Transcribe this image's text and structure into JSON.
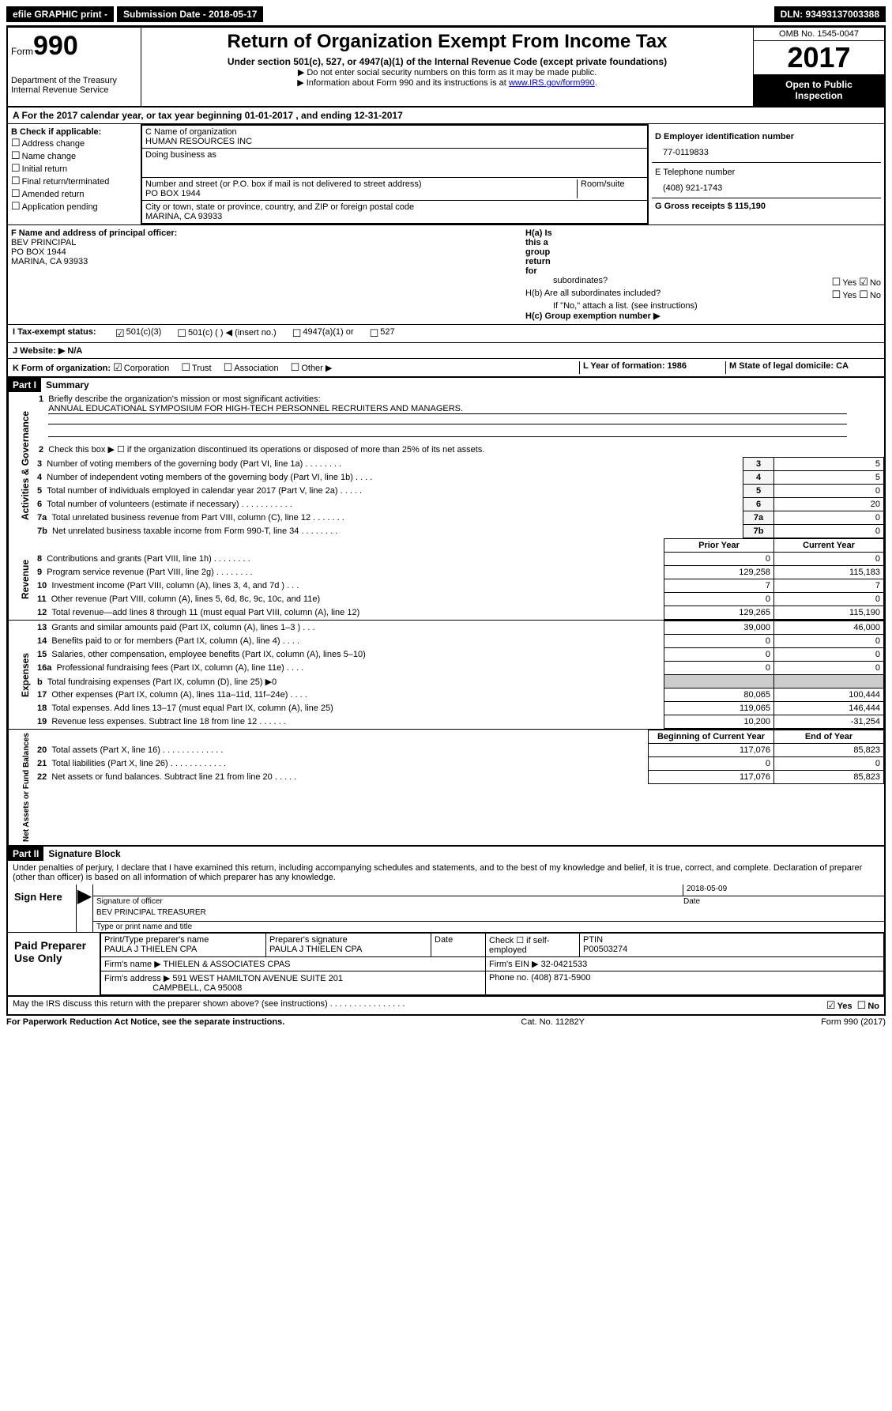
{
  "top_bar": {
    "efile": "efile GRAPHIC print -",
    "sub_date_label": "Submission Date - 2018-05-17",
    "dln": "DLN: 93493137003388"
  },
  "header": {
    "form_label": "Form",
    "form_num": "990",
    "dept1": "Department of the Treasury",
    "dept2": "Internal Revenue Service",
    "title": "Return of Organization Exempt From Income Tax",
    "subtitle": "Under section 501(c), 527, or 4947(a)(1) of the Internal Revenue Code (except private foundations)",
    "note1": "▶ Do not enter social security numbers on this form as it may be made public.",
    "note2": "▶ Information about Form 990 and its instructions is at ",
    "link": "www.IRS.gov/form990",
    "omb": "OMB No. 1545-0047",
    "year": "2017",
    "otp1": "Open to Public",
    "otp2": "Inspection"
  },
  "row_a": "A  For the 2017 calendar year, or tax year beginning 01-01-2017   , and ending 12-31-2017",
  "box_b": {
    "label": "B Check if applicable:",
    "items": [
      "Address change",
      "Name change",
      "Initial return",
      "Final return/terminated",
      "Amended return",
      "Application pending"
    ]
  },
  "box_c": {
    "name_label": "C Name of organization",
    "name": "HUMAN RESOURCES INC",
    "dba_label": "Doing business as",
    "addr_label": "Number and street (or P.O. box if mail is not delivered to street address)",
    "room_label": "Room/suite",
    "addr": "PO BOX 1944",
    "city_label": "City or town, state or province, country, and ZIP or foreign postal code",
    "city": "MARINA, CA  93933"
  },
  "box_d": {
    "ein_label": "D Employer identification number",
    "ein": "77-0119833",
    "phone_label": "E Telephone number",
    "phone": "(408) 921-1743",
    "gross_label": "G Gross receipts $ 115,190"
  },
  "box_f": {
    "label": "F Name and address of principal officer:",
    "name": "BEV PRINCIPAL",
    "addr": "PO BOX 1944",
    "city": "MARINA, CA  93933"
  },
  "box_h": {
    "a": "H(a)  Is this a group return for",
    "a2": "subordinates?",
    "b": "H(b)  Are all subordinates included?",
    "b2": "If \"No,\" attach a list. (see instructions)",
    "c": "H(c)  Group exemption number ▶"
  },
  "box_i": "I  Tax-exempt status:",
  "tax_opts": [
    "501(c)(3)",
    "501(c) (  ) ◀ (insert no.)",
    "4947(a)(1) or",
    "527"
  ],
  "box_j": "J  Website: ▶  N/A",
  "box_k": "K Form of organization:",
  "k_opts": [
    "Corporation",
    "Trust",
    "Association",
    "Other ▶"
  ],
  "box_l": "L Year of formation: 1986",
  "box_m": "M State of legal domicile: CA",
  "part1": {
    "header": "Part I",
    "title": "Summary",
    "vert1": "Activities & Governance",
    "vert2": "Revenue",
    "vert3": "Expenses",
    "vert4": "Net Assets or Fund Balances",
    "q1": "Briefly describe the organization's mission or most significant activities:",
    "q1a": "ANNUAL EDUCATIONAL SYMPOSIUM FOR HIGH-TECH PERSONNEL RECRUITERS AND MANAGERS.",
    "q2": "Check this box ▶ ☐  if the organization discontinued its operations or disposed of more than 25% of its net assets.",
    "rows_gov": [
      {
        "n": "3",
        "t": "Number of voting members of the governing body (Part VI, line 1a)  .  .  .  .  .  .  .  .",
        "v": "5"
      },
      {
        "n": "4",
        "t": "Number of independent voting members of the governing body (Part VI, line 1b)  .  .  .  .",
        "v": "5"
      },
      {
        "n": "5",
        "t": "Total number of individuals employed in calendar year 2017 (Part V, line 2a)  .  .  .  .  .",
        "v": "0"
      },
      {
        "n": "6",
        "t": "Total number of volunteers (estimate if necessary)  .  .  .  .  .  .  .  .  .  .  .",
        "v": "20"
      },
      {
        "n": "7a",
        "t": "Total unrelated business revenue from Part VIII, column (C), line 12  .  .  .  .  .  .  .",
        "v": "0"
      },
      {
        "n": "7b",
        "t": "Net unrelated business taxable income from Form 990-T, line 34  .  .  .  .  .  .  .  .",
        "v": "0"
      }
    ],
    "col_prior": "Prior Year",
    "col_current": "Current Year",
    "rows_rev": [
      {
        "n": "8",
        "t": "Contributions and grants (Part VIII, line 1h)  .  .  .  .  .  .  .  .",
        "p": "0",
        "c": "0"
      },
      {
        "n": "9",
        "t": "Program service revenue (Part VIII, line 2g)  .  .  .  .  .  .  .  .",
        "p": "129,258",
        "c": "115,183"
      },
      {
        "n": "10",
        "t": "Investment income (Part VIII, column (A), lines 3, 4, and 7d )  .  .  .",
        "p": "7",
        "c": "7"
      },
      {
        "n": "11",
        "t": "Other revenue (Part VIII, column (A), lines 5, 6d, 8c, 9c, 10c, and 11e)",
        "p": "0",
        "c": "0"
      },
      {
        "n": "12",
        "t": "Total revenue—add lines 8 through 11 (must equal Part VIII, column (A), line 12)",
        "p": "129,265",
        "c": "115,190"
      }
    ],
    "rows_exp": [
      {
        "n": "13",
        "t": "Grants and similar amounts paid (Part IX, column (A), lines 1–3 )  .  .  .",
        "p": "39,000",
        "c": "46,000"
      },
      {
        "n": "14",
        "t": "Benefits paid to or for members (Part IX, column (A), line 4)  .  .  .  .",
        "p": "0",
        "c": "0"
      },
      {
        "n": "15",
        "t": "Salaries, other compensation, employee benefits (Part IX, column (A), lines 5–10)",
        "p": "0",
        "c": "0"
      },
      {
        "n": "16a",
        "t": "Professional fundraising fees (Part IX, column (A), line 11e)  .  .  .  .",
        "p": "0",
        "c": "0"
      },
      {
        "n": "b",
        "t": "Total fundraising expenses (Part IX, column (D), line 25) ▶0",
        "p": "",
        "c": "",
        "shaded": true
      },
      {
        "n": "17",
        "t": "Other expenses (Part IX, column (A), lines 11a–11d, 11f–24e)  .  .  .  .",
        "p": "80,065",
        "c": "100,444"
      },
      {
        "n": "18",
        "t": "Total expenses. Add lines 13–17 (must equal Part IX, column (A), line 25)",
        "p": "119,065",
        "c": "146,444"
      },
      {
        "n": "19",
        "t": "Revenue less expenses. Subtract line 18 from line 12  .  .  .  .  .  .",
        "p": "10,200",
        "c": "-31,254"
      }
    ],
    "col_begin": "Beginning of Current Year",
    "col_end": "End of Year",
    "rows_net": [
      {
        "n": "20",
        "t": "Total assets (Part X, line 16)  .  .  .  .  .  .  .  .  .  .  .  .  .",
        "p": "117,076",
        "c": "85,823"
      },
      {
        "n": "21",
        "t": "Total liabilities (Part X, line 26)  .  .  .  .  .  .  .  .  .  .  .  .",
        "p": "0",
        "c": "0"
      },
      {
        "n": "22",
        "t": "Net assets or fund balances. Subtract line 21 from line 20  .  .  .  .  .",
        "p": "117,076",
        "c": "85,823"
      }
    ]
  },
  "part2": {
    "header": "Part II",
    "title": "Signature Block",
    "declaration": "Under penalties of perjury, I declare that I have examined this return, including accompanying schedules and statements, and to the best of my knowledge and belief, it is true, correct, and complete. Declaration of preparer (other than officer) is based on all information of which preparer has any knowledge.",
    "sign_here": "Sign Here",
    "sig_date": "2018-05-09",
    "sig_label": "Signature of officer",
    "date_label": "Date",
    "name_title": "BEV PRINCIPAL TREASURER",
    "name_label": "Type or print name and title",
    "paid": "Paid Preparer Use Only",
    "prep_name_label": "Print/Type preparer's name",
    "prep_name": "PAULA J THIELEN CPA",
    "prep_sig_label": "Preparer's signature",
    "prep_sig": "PAULA J THIELEN CPA",
    "prep_date_label": "Date",
    "check_label": "Check ☐ if self-employed",
    "ptin_label": "PTIN",
    "ptin": "P00503274",
    "firm_name_label": "Firm's name     ▶",
    "firm_name": "THIELEN & ASSOCIATES CPAS",
    "firm_ein_label": "Firm's EIN ▶",
    "firm_ein": "32-0421533",
    "firm_addr_label": "Firm's address ▶",
    "firm_addr": "591 WEST HAMILTON AVENUE SUITE 201",
    "firm_city": "CAMPBELL, CA  95008",
    "phone_label": "Phone no.",
    "phone": "(408) 871-5900",
    "discuss": "May the IRS discuss this return with the preparer shown above? (see instructions)  .  .  .  .  .  .  .  .  .  .  .  .  .  .  .  ."
  },
  "footer": {
    "left": "For Paperwork Reduction Act Notice, see the separate instructions.",
    "center": "Cat. No. 11282Y",
    "right": "Form 990 (2017)"
  }
}
